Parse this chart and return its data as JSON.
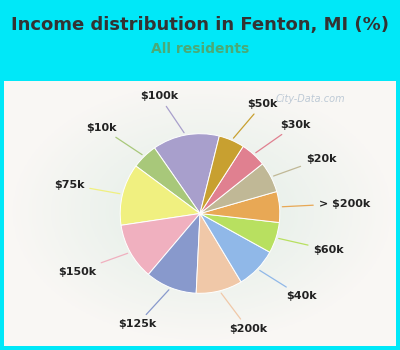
{
  "title": "Income distribution in Fenton, MI (%)",
  "subtitle": "All residents",
  "title_color": "#333333",
  "subtitle_color": "#4aaa77",
  "bg_cyan": "#00e8f8",
  "bg_inner": "#e0f5ee",
  "watermark": "City-Data.com",
  "labels": [
    "$100k",
    "$10k",
    "$75k",
    "$150k",
    "$125k",
    "$200k",
    "$40k",
    "$60k",
    "> $200k",
    "$20k",
    "$30k",
    "$50k"
  ],
  "values": [
    13,
    5,
    12,
    11,
    10,
    9,
    8,
    6,
    6,
    6,
    5,
    5
  ],
  "colors": [
    "#a89fcc",
    "#a8c87a",
    "#f0f080",
    "#f0b0bf",
    "#8899cc",
    "#f0c8a8",
    "#90b8e8",
    "#b8e060",
    "#e8a855",
    "#c0b896",
    "#e08090",
    "#c8a030"
  ],
  "label_fontsize": 8,
  "startangle": 76,
  "title_fontsize": 13,
  "subtitle_fontsize": 10
}
